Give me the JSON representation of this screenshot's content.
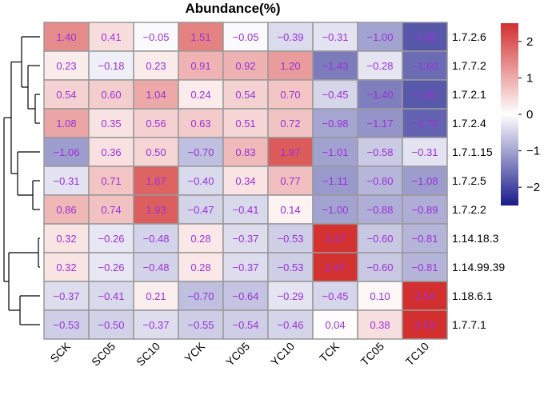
{
  "chart_data": {
    "type": "heatmap",
    "title": "Abundance(%)",
    "columns": [
      "SCK",
      "SC05",
      "SC10",
      "YCK",
      "YC05",
      "YC10",
      "TCK",
      "TC05",
      "TC10"
    ],
    "rows": [
      "1.7.2.6",
      "1.7.7.2",
      "1.7.2.1",
      "1.7.2.4",
      "1.7.1.15",
      "1.7.2.5",
      "1.7.2.2",
      "1.14.18.3",
      "1.14.99.39",
      "1.18.6.1",
      "1.7.7.1"
    ],
    "values": [
      [
        1.4,
        0.41,
        -0.05,
        1.51,
        -0.05,
        -0.39,
        -0.31,
        -1.0,
        -1.82
      ],
      [
        0.23,
        -0.18,
        0.23,
        0.91,
        0.92,
        1.2,
        -1.43,
        -0.28,
        -1.6
      ],
      [
        0.54,
        0.6,
        1.04,
        0.24,
        0.54,
        0.7,
        -0.45,
        -1.4,
        -1.81
      ],
      [
        1.08,
        0.35,
        0.56,
        0.63,
        0.51,
        0.72,
        -0.98,
        -1.17,
        -1.7
      ],
      [
        -1.06,
        0.36,
        0.5,
        -0.7,
        0.83,
        1.97,
        -1.01,
        -0.58,
        -0.31
      ],
      [
        -0.31,
        0.71,
        1.87,
        -0.4,
        0.34,
        0.77,
        -1.11,
        -0.8,
        -1.08
      ],
      [
        0.86,
        0.74,
        1.93,
        -0.47,
        -0.41,
        0.14,
        -1.0,
        -0.88,
        -0.89
      ],
      [
        0.32,
        -0.26,
        -0.48,
        0.28,
        -0.37,
        -0.53,
        2.47,
        -0.6,
        -0.81
      ],
      [
        0.32,
        -0.26,
        -0.48,
        0.28,
        -0.37,
        -0.53,
        2.47,
        -0.6,
        -0.81
      ],
      [
        -0.37,
        -0.41,
        0.21,
        -0.7,
        -0.64,
        -0.29,
        -0.45,
        0.1,
        2.54
      ],
      [
        -0.53,
        -0.5,
        -0.37,
        -0.55,
        -0.54,
        -0.46,
        0.04,
        0.38,
        2.53
      ]
    ],
    "value_labels": [
      [
        "1.40",
        "0.41",
        "−0.05",
        "1.51",
        "−0.05",
        "−0.39",
        "−0.31",
        "−1.00",
        "−1.82"
      ],
      [
        "0.23",
        "−0.18",
        "0.23",
        "0.91",
        "0.92",
        "1.20",
        "−1.43",
        "−0.28",
        "−1.60"
      ],
      [
        "0.54",
        "0.60",
        "1.04",
        "0.24",
        "0.54",
        "0.70",
        "−0.45",
        "−1.40",
        "−1.81"
      ],
      [
        "1.08",
        "0.35",
        "0.56",
        "0.63",
        "0.51",
        "0.72",
        "−0.98",
        "−1.17",
        "−1.70"
      ],
      [
        "−1.06",
        "0.36",
        "0.50",
        "−0.70",
        "0.83",
        "1.97",
        "−1.01",
        "−0.58",
        "−0.31"
      ],
      [
        "−0.31",
        "0.71",
        "1.87",
        "−0.40",
        "0.34",
        "0.77",
        "−1.11",
        "−0.80",
        "−1.08"
      ],
      [
        "0.86",
        "0.74",
        "1.93",
        "−0.47",
        "−0.41",
        "0.14",
        "−1.00",
        "−0.88",
        "−0.89"
      ],
      [
        "0.32",
        "−0.26",
        "−0.48",
        "0.28",
        "−0.37",
        "−0.53",
        "2.47",
        "−0.60",
        "−0.81"
      ],
      [
        "0.32",
        "−0.26",
        "−0.48",
        "0.28",
        "−0.37",
        "−0.53",
        "2.47",
        "−0.60",
        "−0.81"
      ],
      [
        "−0.37",
        "−0.41",
        "0.21",
        "−0.70",
        "−0.64",
        "−0.29",
        "−0.45",
        "0.10",
        "2.54"
      ],
      [
        "−0.53",
        "−0.50",
        "−0.37",
        "−0.55",
        "−0.54",
        "−0.46",
        "0.04",
        "0.38",
        "2.53"
      ]
    ],
    "color_scale": {
      "low": "#1a1a8c",
      "mid": "#ffffff",
      "high": "#d32f2f",
      "range": [
        -2.5,
        2.5
      ],
      "ticks": [
        2,
        1,
        0,
        -1,
        -2
      ],
      "tick_labels": [
        "2",
        "1",
        "0",
        "−1",
        "−2"
      ]
    },
    "text_color": "#9b30d9",
    "grid_color": "#999999",
    "dendrogram": "left, rows clustered"
  }
}
